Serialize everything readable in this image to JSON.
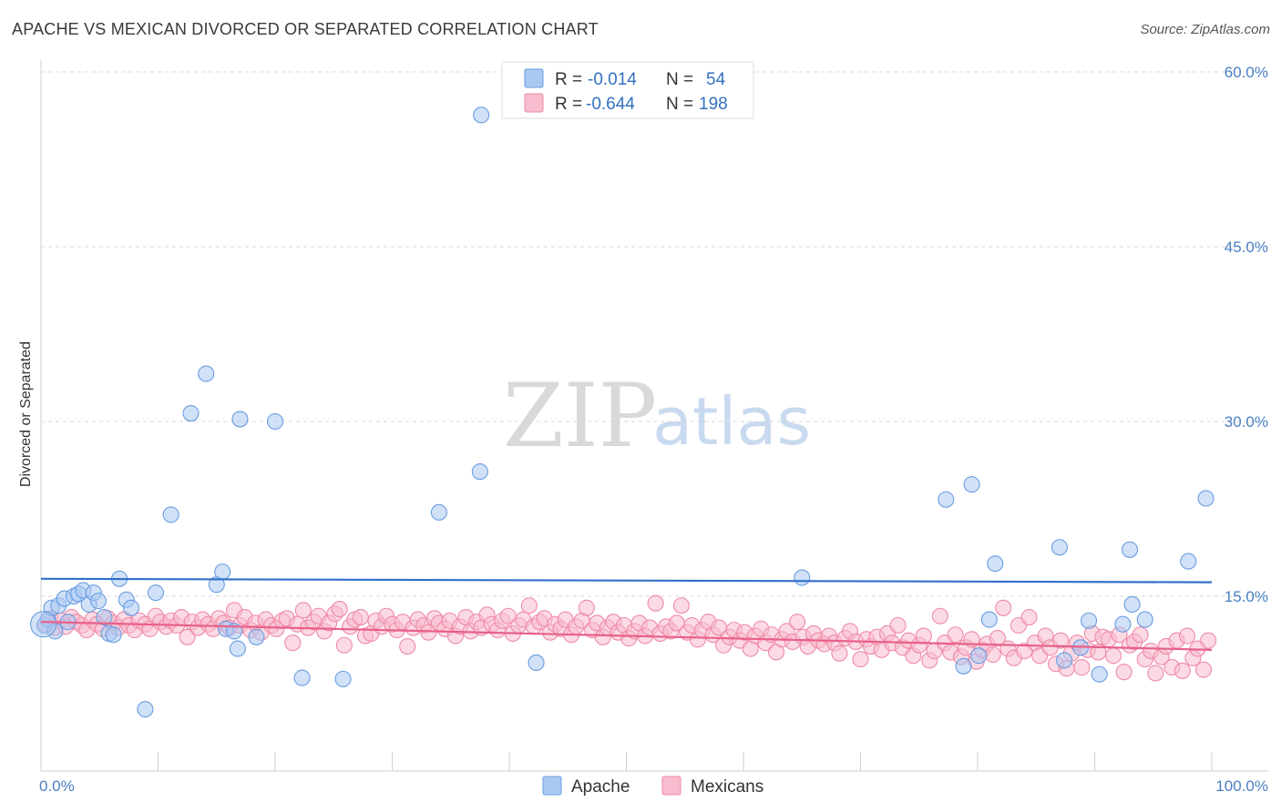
{
  "header": {
    "title": "APACHE VS MEXICAN DIVORCED OR SEPARATED CORRELATION CHART",
    "source": "Source: ZipAtlas.com"
  },
  "watermark": {
    "zip": "ZIP",
    "atlas": "atlas"
  },
  "legend": {
    "rows": [
      {
        "r_label": "R =",
        "r_value": "-0.014",
        "n_label": "N =",
        "n_value": "54",
        "color": "#a9c9f2",
        "stroke": "#6a9de0"
      },
      {
        "r_label": "R =",
        "r_value": "-0.644",
        "n_label": "N =",
        "n_value": "198",
        "color": "#f7bccd",
        "stroke": "#ef8aa8"
      }
    ]
  },
  "bottom_legend": [
    {
      "label": "Apache",
      "color": "#a9c9f2",
      "stroke": "#6a9de0"
    },
    {
      "label": "Mexicans",
      "color": "#f7bccd",
      "stroke": "#ef8aa8"
    }
  ],
  "chart_data": {
    "type": "scatter",
    "ylabel": "Divorced or Separated",
    "xlim": [
      0,
      100
    ],
    "ylim": [
      0,
      60
    ],
    "x_tick_labels": [
      "0.0%",
      "100.0%"
    ],
    "y_ticks": [
      {
        "value": 15,
        "label": "15.0%"
      },
      {
        "value": 30,
        "label": "30.0%"
      },
      {
        "value": 45,
        "label": "45.0%"
      },
      {
        "value": 60,
        "label": "60.0%"
      }
    ],
    "grid": "horizontal-dashed",
    "legend_placement": "top-center",
    "series": [
      {
        "name": "Apache",
        "color": "#a9c9f2",
        "stroke": "#6a9de0",
        "line_color": "#2f6fc9",
        "trend": {
          "x": [
            0,
            100
          ],
          "y": [
            16.5,
            16.2
          ]
        },
        "points": [
          [
            0.3,
            12.5
          ],
          [
            0.6,
            13.0
          ],
          [
            0.9,
            14.0
          ],
          [
            1.2,
            12.0
          ],
          [
            1.5,
            14.2
          ],
          [
            2.0,
            14.8
          ],
          [
            2.3,
            12.8
          ],
          [
            2.8,
            15.0
          ],
          [
            3.2,
            15.2
          ],
          [
            3.6,
            15.5
          ],
          [
            4.1,
            14.3
          ],
          [
            4.5,
            15.3
          ],
          [
            4.9,
            14.6
          ],
          [
            5.4,
            13.2
          ],
          [
            5.8,
            11.8
          ],
          [
            6.2,
            11.7
          ],
          [
            6.7,
            16.5
          ],
          [
            7.3,
            14.7
          ],
          [
            7.7,
            14.0
          ],
          [
            8.9,
            5.3
          ],
          [
            9.8,
            15.3
          ],
          [
            11.1,
            22.0
          ],
          [
            12.8,
            30.7
          ],
          [
            14.1,
            34.1
          ],
          [
            15.0,
            16.0
          ],
          [
            15.5,
            17.1
          ],
          [
            15.8,
            12.2
          ],
          [
            16.5,
            12.0
          ],
          [
            16.8,
            10.5
          ],
          [
            17.0,
            30.2
          ],
          [
            18.4,
            11.5
          ],
          [
            20.0,
            30.0
          ],
          [
            22.3,
            8.0
          ],
          [
            25.8,
            7.9
          ],
          [
            34.0,
            22.2
          ],
          [
            37.5,
            25.7
          ],
          [
            37.6,
            56.3
          ],
          [
            42.3,
            9.3
          ],
          [
            65.0,
            16.6
          ],
          [
            77.3,
            23.3
          ],
          [
            78.8,
            9.0
          ],
          [
            79.5,
            24.6
          ],
          [
            80.1,
            9.9
          ],
          [
            81.0,
            13.0
          ],
          [
            81.5,
            17.8
          ],
          [
            87.0,
            19.2
          ],
          [
            87.4,
            9.5
          ],
          [
            88.8,
            10.6
          ],
          [
            89.5,
            12.9
          ],
          [
            90.4,
            8.3
          ],
          [
            92.4,
            12.6
          ],
          [
            93.0,
            19.0
          ],
          [
            93.2,
            14.3
          ],
          [
            94.3,
            13.0
          ],
          [
            98.0,
            18.0
          ],
          [
            99.5,
            23.4
          ]
        ]
      },
      {
        "name": "Mexicans",
        "color": "#f7bccd",
        "stroke": "#ef8aa8",
        "line_color": "#e8608a",
        "trend": {
          "x": [
            0,
            100
          ],
          "y": [
            12.8,
            10.4
          ]
        },
        "points": [
          [
            0.4,
            12.6
          ],
          [
            0.8,
            13.1
          ],
          [
            1.2,
            12.3
          ],
          [
            1.7,
            12.9
          ],
          [
            2.1,
            12.4
          ],
          [
            2.6,
            13.2
          ],
          [
            3.0,
            12.8
          ],
          [
            3.5,
            12.5
          ],
          [
            3.9,
            12.1
          ],
          [
            4.4,
            13.0
          ],
          [
            4.8,
            12.6
          ],
          [
            5.3,
            12.2
          ],
          [
            5.7,
            13.1
          ],
          [
            6.2,
            12.7
          ],
          [
            6.6,
            12.3
          ],
          [
            7.1,
            13.0
          ],
          [
            7.5,
            12.5
          ],
          [
            8.0,
            12.1
          ],
          [
            8.4,
            12.9
          ],
          [
            8.9,
            12.6
          ],
          [
            9.3,
            12.2
          ],
          [
            9.8,
            13.3
          ],
          [
            10.2,
            12.8
          ],
          [
            10.7,
            12.4
          ],
          [
            11.1,
            12.9
          ],
          [
            11.6,
            12.5
          ],
          [
            12.0,
            13.2
          ],
          [
            12.5,
            11.5
          ],
          [
            12.9,
            12.8
          ],
          [
            13.4,
            12.3
          ],
          [
            13.8,
            13.0
          ],
          [
            14.3,
            12.6
          ],
          [
            14.7,
            12.2
          ],
          [
            15.2,
            13.1
          ],
          [
            15.6,
            12.7
          ],
          [
            16.1,
            12.3
          ],
          [
            16.5,
            13.8
          ],
          [
            17.0,
            12.5
          ],
          [
            17.4,
            13.2
          ],
          [
            17.9,
            12.1
          ],
          [
            18.3,
            12.7
          ],
          [
            18.8,
            11.9
          ],
          [
            19.2,
            13.0
          ],
          [
            19.7,
            12.5
          ],
          [
            20.1,
            12.2
          ],
          [
            20.6,
            12.9
          ],
          [
            21.0,
            13.1
          ],
          [
            21.5,
            11.0
          ],
          [
            21.9,
            12.6
          ],
          [
            22.4,
            13.8
          ],
          [
            22.8,
            12.3
          ],
          [
            23.3,
            12.8
          ],
          [
            23.7,
            13.3
          ],
          [
            24.2,
            12.0
          ],
          [
            24.6,
            12.7
          ],
          [
            25.1,
            13.5
          ],
          [
            25.5,
            13.9
          ],
          [
            25.9,
            10.8
          ],
          [
            26.4,
            12.4
          ],
          [
            26.8,
            13.0
          ],
          [
            27.3,
            13.2
          ],
          [
            27.7,
            11.6
          ],
          [
            28.2,
            11.8
          ],
          [
            28.6,
            12.9
          ],
          [
            29.1,
            12.4
          ],
          [
            29.5,
            13.3
          ],
          [
            30.0,
            12.6
          ],
          [
            30.4,
            12.1
          ],
          [
            30.9,
            12.8
          ],
          [
            31.3,
            10.7
          ],
          [
            31.8,
            12.3
          ],
          [
            32.2,
            13.0
          ],
          [
            32.7,
            12.5
          ],
          [
            33.1,
            11.9
          ],
          [
            33.6,
            13.1
          ],
          [
            34.0,
            12.7
          ],
          [
            34.5,
            12.2
          ],
          [
            34.9,
            12.9
          ],
          [
            35.4,
            11.6
          ],
          [
            35.8,
            12.4
          ],
          [
            36.3,
            13.2
          ],
          [
            36.7,
            12.0
          ],
          [
            37.2,
            12.8
          ],
          [
            37.6,
            12.3
          ],
          [
            38.1,
            13.4
          ],
          [
            38.5,
            12.6
          ],
          [
            39.0,
            12.1
          ],
          [
            39.4,
            12.9
          ],
          [
            39.9,
            13.3
          ],
          [
            40.3,
            11.8
          ],
          [
            40.8,
            12.5
          ],
          [
            41.2,
            13.0
          ],
          [
            41.7,
            14.2
          ],
          [
            42.1,
            12.4
          ],
          [
            42.6,
            12.8
          ],
          [
            43.0,
            13.1
          ],
          [
            43.5,
            11.9
          ],
          [
            43.9,
            12.6
          ],
          [
            44.4,
            12.2
          ],
          [
            44.8,
            13.0
          ],
          [
            45.3,
            11.7
          ],
          [
            45.7,
            12.4
          ],
          [
            46.2,
            12.9
          ],
          [
            46.6,
            14.0
          ],
          [
            47.1,
            12.1
          ],
          [
            47.5,
            12.7
          ],
          [
            48.0,
            11.5
          ],
          [
            48.4,
            12.3
          ],
          [
            48.9,
            12.8
          ],
          [
            49.3,
            11.9
          ],
          [
            49.8,
            12.5
          ],
          [
            50.2,
            11.4
          ],
          [
            50.7,
            12.0
          ],
          [
            51.1,
            12.7
          ],
          [
            51.6,
            11.6
          ],
          [
            52.0,
            12.3
          ],
          [
            52.5,
            14.4
          ],
          [
            52.9,
            11.8
          ],
          [
            53.4,
            12.4
          ],
          [
            53.8,
            12.0
          ],
          [
            54.3,
            12.7
          ],
          [
            54.7,
            14.2
          ],
          [
            55.2,
            11.9
          ],
          [
            55.6,
            12.5
          ],
          [
            56.1,
            11.3
          ],
          [
            56.5,
            12.1
          ],
          [
            57.0,
            12.8
          ],
          [
            57.4,
            11.7
          ],
          [
            57.9,
            12.3
          ],
          [
            58.3,
            10.8
          ],
          [
            58.8,
            11.5
          ],
          [
            59.2,
            12.1
          ],
          [
            59.7,
            11.2
          ],
          [
            60.1,
            11.9
          ],
          [
            60.6,
            10.5
          ],
          [
            61.0,
            11.6
          ],
          [
            61.5,
            12.2
          ],
          [
            61.9,
            11.0
          ],
          [
            62.4,
            11.7
          ],
          [
            62.8,
            10.2
          ],
          [
            63.3,
            11.3
          ],
          [
            63.7,
            12.0
          ],
          [
            64.2,
            11.1
          ],
          [
            64.6,
            12.8
          ],
          [
            65.1,
            11.5
          ],
          [
            65.5,
            10.7
          ],
          [
            66.0,
            11.8
          ],
          [
            66.4,
            11.2
          ],
          [
            66.9,
            10.9
          ],
          [
            67.3,
            11.6
          ],
          [
            67.8,
            11.0
          ],
          [
            68.2,
            10.1
          ],
          [
            68.7,
            11.4
          ],
          [
            69.1,
            12.0
          ],
          [
            69.6,
            11.1
          ],
          [
            70.0,
            9.6
          ],
          [
            70.5,
            11.3
          ],
          [
            70.9,
            10.7
          ],
          [
            71.4,
            11.5
          ],
          [
            71.8,
            10.4
          ],
          [
            72.3,
            11.8
          ],
          [
            72.7,
            11.0
          ],
          [
            73.2,
            12.5
          ],
          [
            73.6,
            10.6
          ],
          [
            74.1,
            11.2
          ],
          [
            74.5,
            9.9
          ],
          [
            75.0,
            10.8
          ],
          [
            75.4,
            11.6
          ],
          [
            75.9,
            9.5
          ],
          [
            76.3,
            10.3
          ],
          [
            76.8,
            13.3
          ],
          [
            77.2,
            11.0
          ],
          [
            77.7,
            10.2
          ],
          [
            78.1,
            11.7
          ],
          [
            78.6,
            9.8
          ],
          [
            79.0,
            10.6
          ],
          [
            79.5,
            11.3
          ],
          [
            79.9,
            9.4
          ],
          [
            80.4,
            10.4
          ],
          [
            80.8,
            10.9
          ],
          [
            81.3,
            10.0
          ],
          [
            81.7,
            11.4
          ],
          [
            82.2,
            14.0
          ],
          [
            82.6,
            10.5
          ],
          [
            83.1,
            9.7
          ],
          [
            83.5,
            12.5
          ],
          [
            84.0,
            10.3
          ],
          [
            84.4,
            13.2
          ],
          [
            84.9,
            11.0
          ],
          [
            85.3,
            9.9
          ],
          [
            85.8,
            11.6
          ],
          [
            86.2,
            10.6
          ],
          [
            86.7,
            9.2
          ],
          [
            87.1,
            11.2
          ],
          [
            87.6,
            8.8
          ],
          [
            88.0,
            10.1
          ],
          [
            88.5,
            11.0
          ],
          [
            88.9,
            8.9
          ],
          [
            89.4,
            10.4
          ],
          [
            89.8,
            11.8
          ],
          [
            90.3,
            10.2
          ],
          [
            90.7,
            11.5
          ],
          [
            91.2,
            11.3
          ],
          [
            91.6,
            9.9
          ],
          [
            92.1,
            11.7
          ],
          [
            92.5,
            8.5
          ],
          [
            93.0,
            10.8
          ],
          [
            93.4,
            11.1
          ],
          [
            93.9,
            11.7
          ],
          [
            94.3,
            9.6
          ],
          [
            94.8,
            10.3
          ],
          [
            95.2,
            8.4
          ],
          [
            95.7,
            9.8
          ],
          [
            96.1,
            10.7
          ],
          [
            96.6,
            8.9
          ],
          [
            97.0,
            11.2
          ],
          [
            97.5,
            8.6
          ],
          [
            97.9,
            11.6
          ],
          [
            98.4,
            9.7
          ],
          [
            98.8,
            10.5
          ],
          [
            99.3,
            8.7
          ],
          [
            99.7,
            11.2
          ]
        ]
      }
    ]
  }
}
